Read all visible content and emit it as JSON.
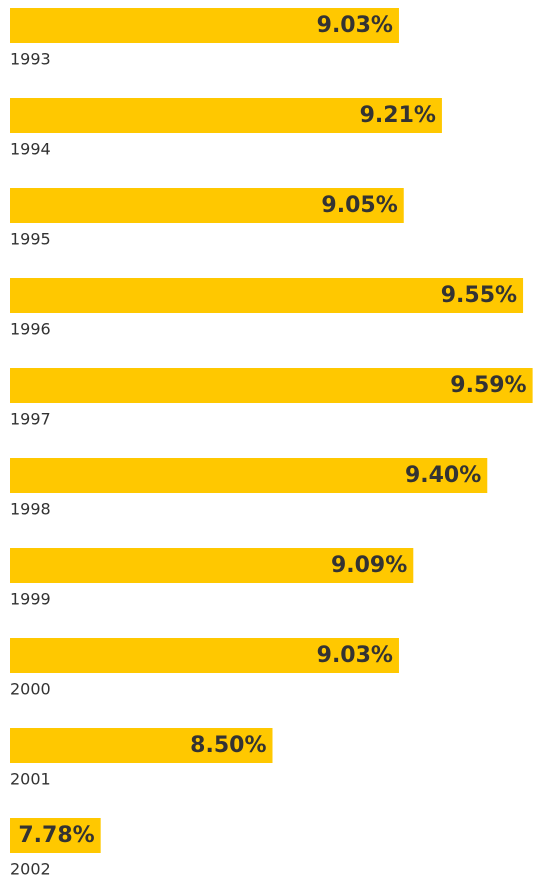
{
  "chart_data": {
    "type": "hbar",
    "categories": [
      "1993",
      "1994",
      "1995",
      "1996",
      "1997",
      "1998",
      "1999",
      "2000",
      "2001",
      "2002"
    ],
    "values": [
      9.03,
      9.21,
      9.05,
      9.55,
      9.59,
      9.4,
      9.09,
      9.03,
      8.5,
      7.78
    ],
    "value_labels": [
      "9.03%",
      "9.21%",
      "9.05%",
      "9.55%",
      "9.59%",
      "9.40%",
      "9.09%",
      "9.03%",
      "8.50%",
      "7.78%"
    ],
    "color": "#ffc800",
    "xlim": [
      7.4,
      9.6
    ]
  }
}
